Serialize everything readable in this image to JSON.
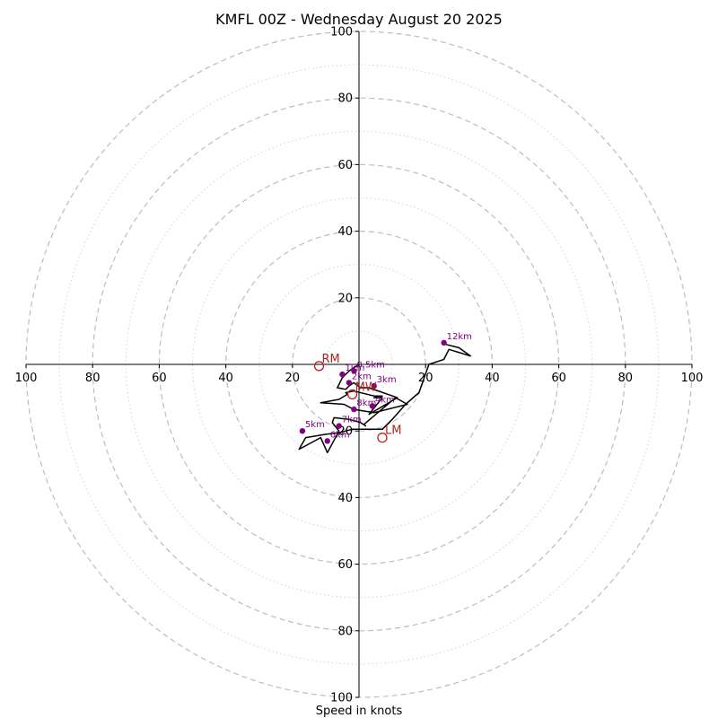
{
  "chart_data": {
    "type": "hodograph",
    "title": "KMFL 00Z - Wednesday August 20 2025",
    "xlabel": "Speed in knots",
    "ylabel": "",
    "range": [
      -100,
      100
    ],
    "grid": true,
    "major_rings": [
      20,
      40,
      60,
      80,
      100
    ],
    "minor_rings": [
      10,
      30,
      50,
      70,
      90
    ],
    "tick_labels": {
      "x": [
        {
          "value": -100,
          "label": "100"
        },
        {
          "value": -80,
          "label": "80"
        },
        {
          "value": -60,
          "label": "60"
        },
        {
          "value": -40,
          "label": "40"
        },
        {
          "value": -20,
          "label": "20"
        },
        {
          "value": 20,
          "label": "20"
        },
        {
          "value": 40,
          "label": "40"
        },
        {
          "value": 60,
          "label": "60"
        },
        {
          "value": 80,
          "label": "80"
        },
        {
          "value": 100,
          "label": "100"
        }
      ],
      "y": [
        {
          "value": 100,
          "label": "100"
        },
        {
          "value": 80,
          "label": "80"
        },
        {
          "value": 60,
          "label": "60"
        },
        {
          "value": 40,
          "label": "40"
        },
        {
          "value": 20,
          "label": "20"
        },
        {
          "value": -20,
          "label": "20"
        },
        {
          "value": -40,
          "label": "40"
        },
        {
          "value": -60,
          "label": "60"
        },
        {
          "value": -80,
          "label": "80"
        },
        {
          "value": -100,
          "label": "100"
        }
      ]
    },
    "wind_profile": {
      "u": [
        0,
        -3,
        -5,
        -6.5,
        -4,
        -3,
        -1.6,
        0.5,
        3,
        11.5,
        3,
        7,
        4.5,
        7,
        4.5,
        -1.5,
        -4,
        -3.5,
        -6,
        -11.5,
        -4.5,
        -1.6,
        4.5,
        14.5,
        11,
        1.5,
        2,
        0.5,
        -3,
        -7.5,
        -8,
        -6,
        -9.5,
        -11.5,
        -18,
        -16,
        -13,
        -10,
        -6,
        -2,
        3,
        7,
        10,
        14,
        18,
        21,
        25.5,
        27,
        33.5,
        30,
        26,
        25.5
      ],
      "v": [
        0,
        -2,
        -4,
        -7,
        -7.5,
        -6.5,
        -5.5,
        -7,
        -7,
        -10,
        -15,
        -10,
        -10,
        -9.5,
        -9.5,
        -8,
        -8.5,
        -9,
        -10.5,
        -11.5,
        -12,
        -13.5,
        -14.5,
        -12,
        -10,
        -18,
        -18.5,
        -17.5,
        -16.5,
        -16,
        -17.5,
        -20,
        -26.5,
        -22,
        -25.5,
        -22,
        -21.5,
        -21,
        -20.5,
        -19.5,
        -19.5,
        -19.5,
        -16.5,
        -12,
        -8.5,
        0,
        1.5,
        4.5,
        2.5,
        5,
        6,
        6.5
      ]
    },
    "height_labels": [
      {
        "label": "0.5km",
        "u": -1.5,
        "v": -2
      },
      {
        "label": "1km",
        "u": -5,
        "v": -3
      },
      {
        "label": "2km",
        "u": -3,
        "v": -5.5
      },
      {
        "label": "3km",
        "u": 4.5,
        "v": -6.5
      },
      {
        "label": "4km",
        "u": 4,
        "v": -12.5
      },
      {
        "label": "5km",
        "u": -17,
        "v": -20
      },
      {
        "label": "6km",
        "u": -9.5,
        "v": -23
      },
      {
        "label": "7km",
        "u": -6,
        "v": -18.5
      },
      {
        "label": "8km",
        "u": -1.5,
        "v": -13.5
      },
      {
        "label": "12km",
        "u": 25.5,
        "v": 6.5
      }
    ],
    "storm_motion": [
      {
        "label": "RM",
        "u": -12,
        "v": -0.5
      },
      {
        "label": "MW",
        "u": -2,
        "v": -9
      },
      {
        "label": "LM",
        "u": 7,
        "v": -22
      }
    ],
    "colors": {
      "profile": "#000000",
      "height_marker": "#800080",
      "storm_motion": "#b22222",
      "major_grid": "#bdbdbd",
      "minor_grid": "#d3d3d3"
    }
  }
}
